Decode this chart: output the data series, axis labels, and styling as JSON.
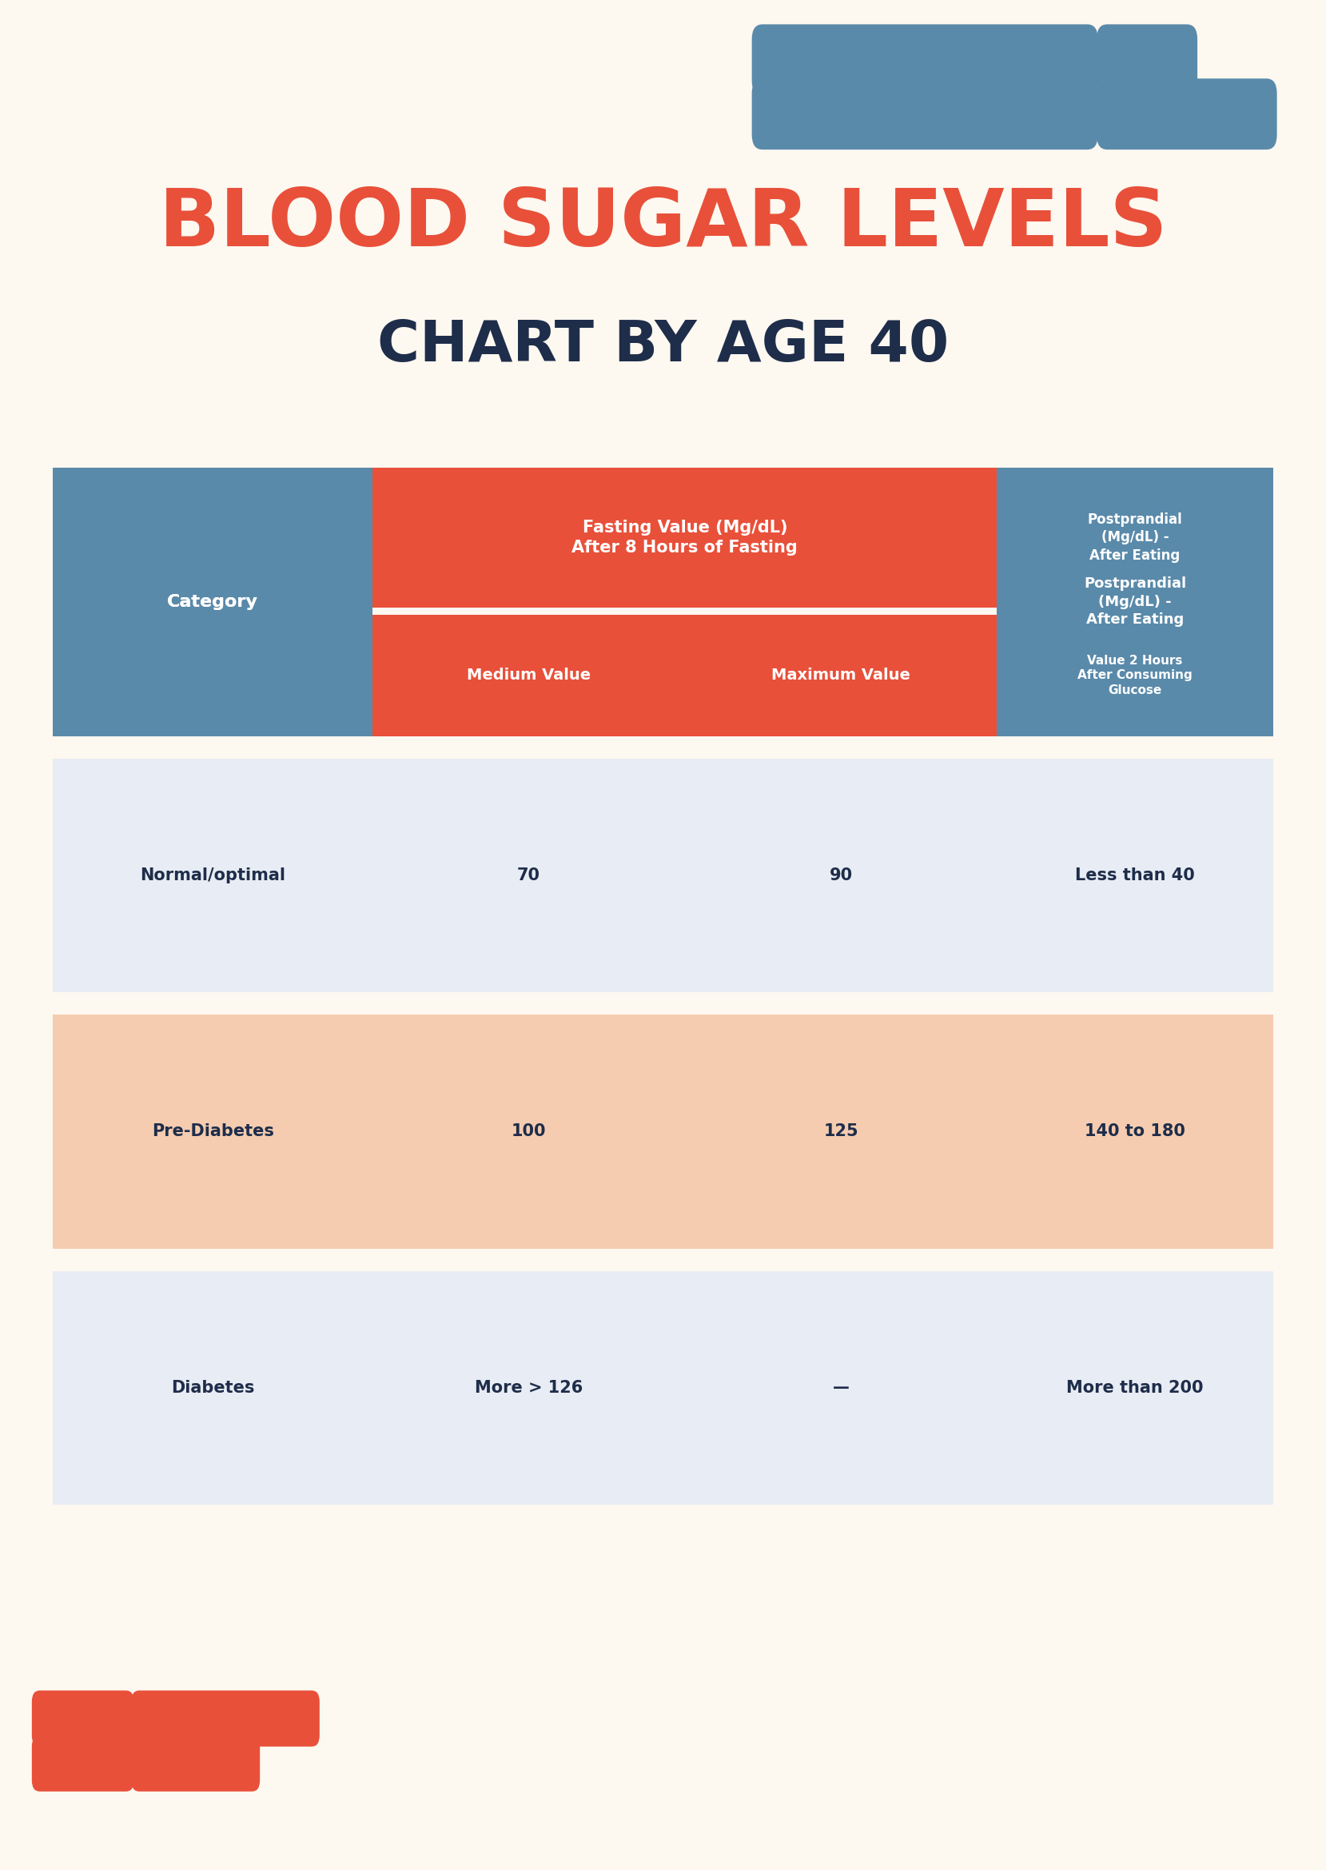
{
  "background_color": "#fdf8f0",
  "title_line1": "BLOOD SUGAR LEVELS",
  "title_line2": "CHART BY AGE 40",
  "title_color": "#e8503a",
  "subtitle_color": "#1e2d4a",
  "header_blue": "#5a8aaa",
  "header_orange": "#e8503a",
  "row_light_blue": "#e8ecf4",
  "row_light_peach": "#f5ccb0",
  "dark_text": "#1e2d4a",
  "white_text": "#ffffff",
  "deco_blue": "#5a8aaa",
  "deco_orange": "#e8503a",
  "col_headers": [
    "Category",
    "Fasting Value (Mg/dL)\nAfter 8 Hours of Fasting",
    "Medium Value",
    "Maximum Value",
    "Postprandial\n(Mg/dL) -\nAfter Eating\n\nValue 2 Hours\nAfter Consuming\nGlucose"
  ],
  "rows": [
    {
      "category": "Normal/optimal",
      "medium": "70",
      "maximum": "90",
      "postprandial": "Less than 40",
      "bg": "#e8ecf4"
    },
    {
      "category": "Pre-Diabetes",
      "medium": "100",
      "maximum": "125",
      "postprandial": "140 to 180",
      "bg": "#f5ccb0"
    },
    {
      "category": "Diabetes",
      "medium": "More > 126",
      "maximum": "—",
      "postprandial": "More than 200",
      "bg": "#e8ecf4"
    }
  ]
}
